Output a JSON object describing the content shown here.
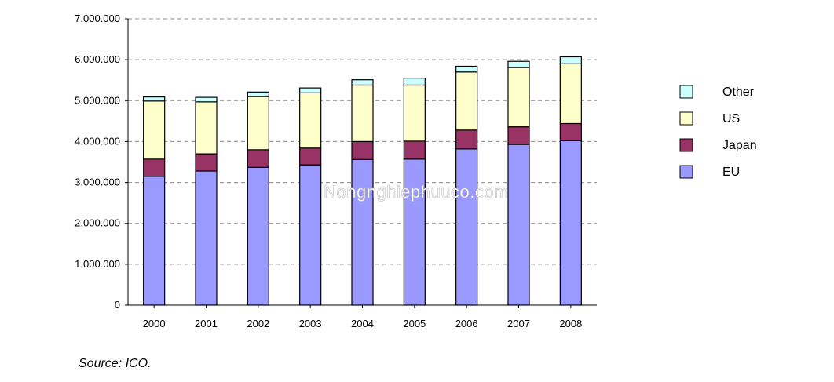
{
  "chart_data": {
    "type": "bar",
    "stacked": true,
    "categories": [
      "2000",
      "2001",
      "2002",
      "2003",
      "2004",
      "2005",
      "2006",
      "2007",
      "2008"
    ],
    "series": [
      {
        "name": "EU",
        "color": "#9999ff",
        "values": [
          3150000,
          3280000,
          3370000,
          3430000,
          3560000,
          3570000,
          3820000,
          3930000,
          4020000
        ]
      },
      {
        "name": "Japan",
        "color": "#993366",
        "values": [
          420000,
          420000,
          430000,
          410000,
          440000,
          440000,
          460000,
          430000,
          420000
        ]
      },
      {
        "name": "US",
        "color": "#ffffcc",
        "values": [
          1420000,
          1270000,
          1300000,
          1350000,
          1380000,
          1370000,
          1420000,
          1450000,
          1460000
        ]
      },
      {
        "name": "Other",
        "color": "#ccffff",
        "values": [
          100000,
          110000,
          110000,
          120000,
          130000,
          170000,
          140000,
          150000,
          170000
        ]
      }
    ],
    "yticks": [
      "0",
      "1.000.000",
      "2.000.000",
      "3.000.000",
      "4.000.000",
      "5.000.000",
      "6.000.000",
      "7.000.000"
    ],
    "ylim": [
      0,
      7000000
    ],
    "grid": true,
    "legend_position": "right",
    "legend_order": [
      "Other",
      "US",
      "Japan",
      "EU"
    ]
  },
  "watermark": "Nongnghiephuuco.com",
  "source": "Source: ICO."
}
